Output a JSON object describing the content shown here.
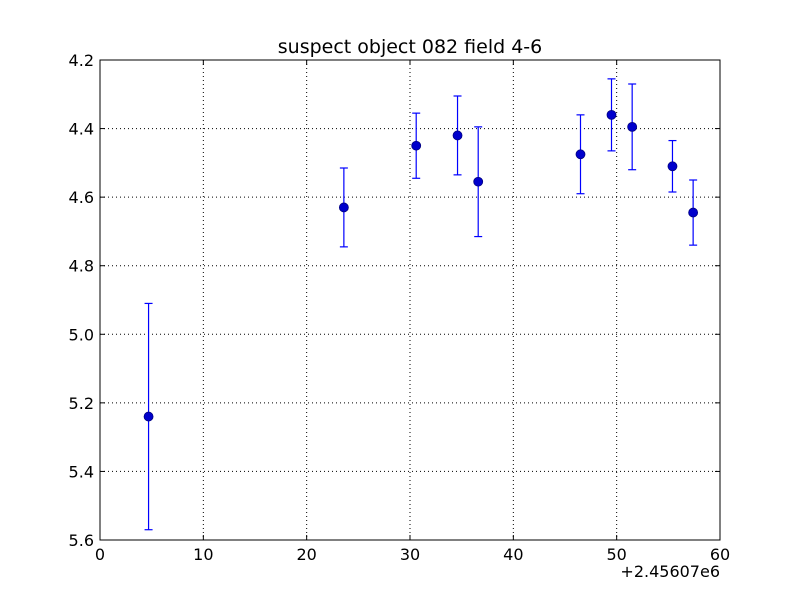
{
  "chart_data": {
    "type": "scatter",
    "title": "suspect object 082 field 4-6",
    "xlabel": "",
    "ylabel": "",
    "x_offset_label": "+2.45607e6",
    "xlim": [
      0,
      60
    ],
    "ylim": [
      5.6,
      4.2
    ],
    "y_inverted": true,
    "grid": true,
    "x_ticks": [
      "0",
      "10",
      "20",
      "30",
      "40",
      "50",
      "60"
    ],
    "y_ticks": [
      "4.2",
      "4.4",
      "4.6",
      "4.8",
      "5.0",
      "5.2",
      "5.4",
      "5.6"
    ],
    "marker_color": "#0000cc",
    "errorbar_color": "#0000ff",
    "series": [
      {
        "points": [
          {
            "x": 4.7,
            "y": 5.24,
            "err": 0.33
          },
          {
            "x": 23.6,
            "y": 4.63,
            "err": 0.115
          },
          {
            "x": 30.6,
            "y": 4.45,
            "err": 0.095
          },
          {
            "x": 34.6,
            "y": 4.42,
            "err": 0.115
          },
          {
            "x": 36.6,
            "y": 4.555,
            "err": 0.16
          },
          {
            "x": 46.5,
            "y": 4.475,
            "err": 0.115
          },
          {
            "x": 49.5,
            "y": 4.36,
            "err": 0.105
          },
          {
            "x": 51.5,
            "y": 4.395,
            "err": 0.125
          },
          {
            "x": 55.4,
            "y": 4.51,
            "err": 0.075
          },
          {
            "x": 57.4,
            "y": 4.645,
            "err": 0.095
          }
        ]
      }
    ]
  }
}
